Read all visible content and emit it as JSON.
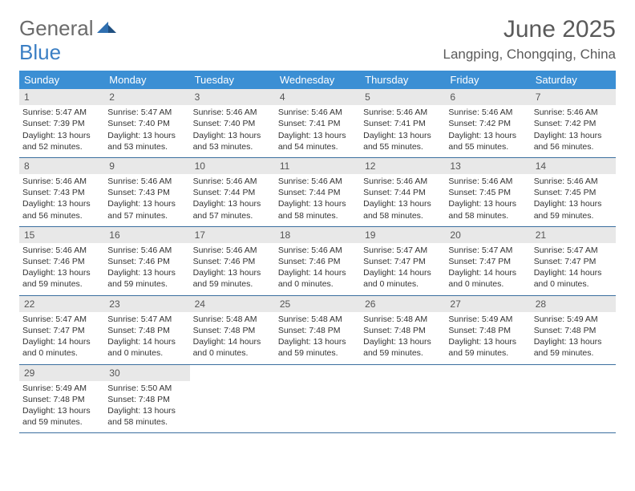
{
  "brand": {
    "text_general": "General",
    "text_blue": "Blue",
    "icon_color": "#2f6fb0"
  },
  "header": {
    "title": "June 2025",
    "location": "Langping, Chongqing, China"
  },
  "colors": {
    "header_bg": "#3b8fd4",
    "header_text": "#ffffff",
    "daynum_bg": "#e8e8e8",
    "daynum_text": "#555555",
    "border": "#3b6f9f",
    "body_text": "#333333"
  },
  "day_labels": [
    "Sunday",
    "Monday",
    "Tuesday",
    "Wednesday",
    "Thursday",
    "Friday",
    "Saturday"
  ],
  "weeks": [
    [
      {
        "n": "1",
        "sunrise": "5:47 AM",
        "sunset": "7:39 PM",
        "daylight": "13 hours and 52 minutes."
      },
      {
        "n": "2",
        "sunrise": "5:47 AM",
        "sunset": "7:40 PM",
        "daylight": "13 hours and 53 minutes."
      },
      {
        "n": "3",
        "sunrise": "5:46 AM",
        "sunset": "7:40 PM",
        "daylight": "13 hours and 53 minutes."
      },
      {
        "n": "4",
        "sunrise": "5:46 AM",
        "sunset": "7:41 PM",
        "daylight": "13 hours and 54 minutes."
      },
      {
        "n": "5",
        "sunrise": "5:46 AM",
        "sunset": "7:41 PM",
        "daylight": "13 hours and 55 minutes."
      },
      {
        "n": "6",
        "sunrise": "5:46 AM",
        "sunset": "7:42 PM",
        "daylight": "13 hours and 55 minutes."
      },
      {
        "n": "7",
        "sunrise": "5:46 AM",
        "sunset": "7:42 PM",
        "daylight": "13 hours and 56 minutes."
      }
    ],
    [
      {
        "n": "8",
        "sunrise": "5:46 AM",
        "sunset": "7:43 PM",
        "daylight": "13 hours and 56 minutes."
      },
      {
        "n": "9",
        "sunrise": "5:46 AM",
        "sunset": "7:43 PM",
        "daylight": "13 hours and 57 minutes."
      },
      {
        "n": "10",
        "sunrise": "5:46 AM",
        "sunset": "7:44 PM",
        "daylight": "13 hours and 57 minutes."
      },
      {
        "n": "11",
        "sunrise": "5:46 AM",
        "sunset": "7:44 PM",
        "daylight": "13 hours and 58 minutes."
      },
      {
        "n": "12",
        "sunrise": "5:46 AM",
        "sunset": "7:44 PM",
        "daylight": "13 hours and 58 minutes."
      },
      {
        "n": "13",
        "sunrise": "5:46 AM",
        "sunset": "7:45 PM",
        "daylight": "13 hours and 58 minutes."
      },
      {
        "n": "14",
        "sunrise": "5:46 AM",
        "sunset": "7:45 PM",
        "daylight": "13 hours and 59 minutes."
      }
    ],
    [
      {
        "n": "15",
        "sunrise": "5:46 AM",
        "sunset": "7:46 PM",
        "daylight": "13 hours and 59 minutes."
      },
      {
        "n": "16",
        "sunrise": "5:46 AM",
        "sunset": "7:46 PM",
        "daylight": "13 hours and 59 minutes."
      },
      {
        "n": "17",
        "sunrise": "5:46 AM",
        "sunset": "7:46 PM",
        "daylight": "13 hours and 59 minutes."
      },
      {
        "n": "18",
        "sunrise": "5:46 AM",
        "sunset": "7:46 PM",
        "daylight": "14 hours and 0 minutes."
      },
      {
        "n": "19",
        "sunrise": "5:47 AM",
        "sunset": "7:47 PM",
        "daylight": "14 hours and 0 minutes."
      },
      {
        "n": "20",
        "sunrise": "5:47 AM",
        "sunset": "7:47 PM",
        "daylight": "14 hours and 0 minutes."
      },
      {
        "n": "21",
        "sunrise": "5:47 AM",
        "sunset": "7:47 PM",
        "daylight": "14 hours and 0 minutes."
      }
    ],
    [
      {
        "n": "22",
        "sunrise": "5:47 AM",
        "sunset": "7:47 PM",
        "daylight": "14 hours and 0 minutes."
      },
      {
        "n": "23",
        "sunrise": "5:47 AM",
        "sunset": "7:48 PM",
        "daylight": "14 hours and 0 minutes."
      },
      {
        "n": "24",
        "sunrise": "5:48 AM",
        "sunset": "7:48 PM",
        "daylight": "14 hours and 0 minutes."
      },
      {
        "n": "25",
        "sunrise": "5:48 AM",
        "sunset": "7:48 PM",
        "daylight": "13 hours and 59 minutes."
      },
      {
        "n": "26",
        "sunrise": "5:48 AM",
        "sunset": "7:48 PM",
        "daylight": "13 hours and 59 minutes."
      },
      {
        "n": "27",
        "sunrise": "5:49 AM",
        "sunset": "7:48 PM",
        "daylight": "13 hours and 59 minutes."
      },
      {
        "n": "28",
        "sunrise": "5:49 AM",
        "sunset": "7:48 PM",
        "daylight": "13 hours and 59 minutes."
      }
    ],
    [
      {
        "n": "29",
        "sunrise": "5:49 AM",
        "sunset": "7:48 PM",
        "daylight": "13 hours and 59 minutes."
      },
      {
        "n": "30",
        "sunrise": "5:50 AM",
        "sunset": "7:48 PM",
        "daylight": "13 hours and 58 minutes."
      },
      null,
      null,
      null,
      null,
      null
    ]
  ],
  "labels": {
    "sunrise_prefix": "Sunrise: ",
    "sunset_prefix": "Sunset: ",
    "daylight_prefix": "Daylight: "
  }
}
